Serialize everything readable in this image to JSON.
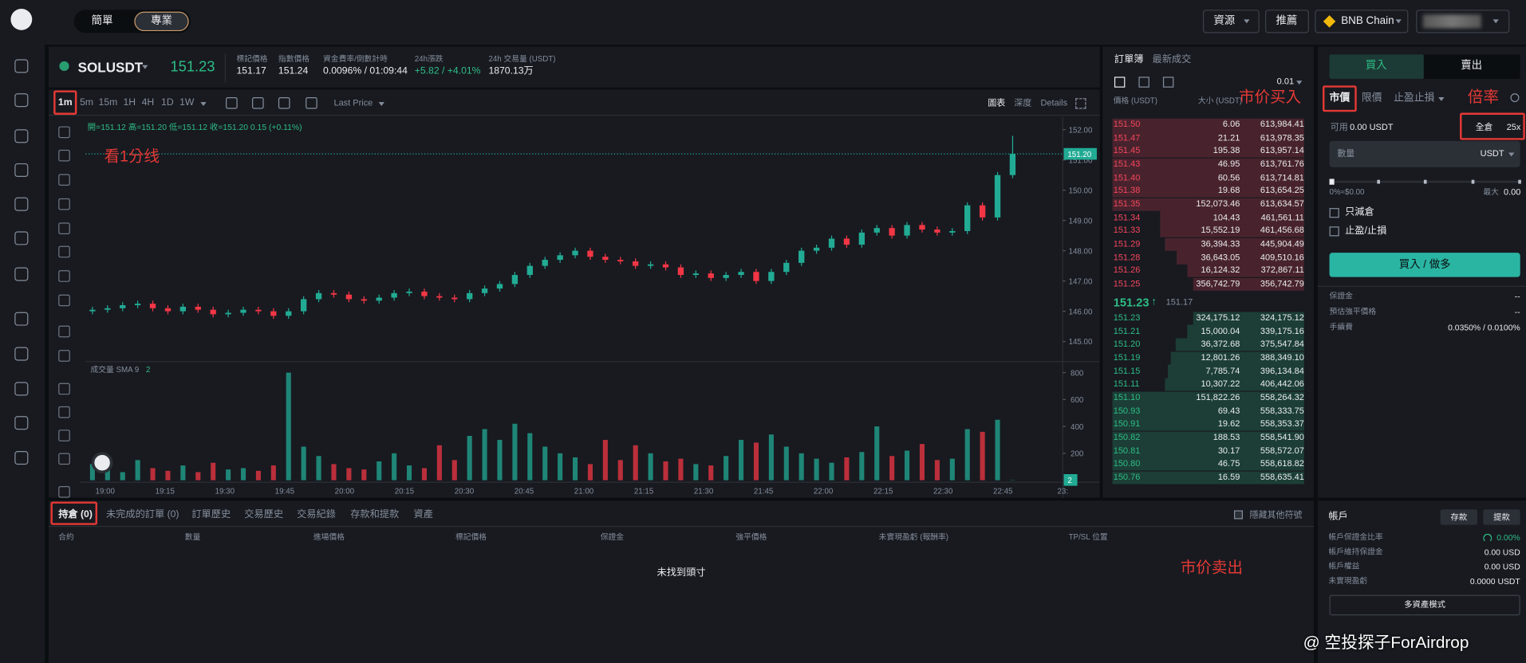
{
  "nav": {
    "simple": "簡單",
    "pro": "專業",
    "resources": "資源",
    "referral": "推薦",
    "network": "BNB Chain"
  },
  "ticker": {
    "symbol": "SOLUSDT",
    "price": "151.23",
    "stats": [
      {
        "label": "標記價格",
        "value": "151.17"
      },
      {
        "label": "指數價格",
        "value": "151.24"
      },
      {
        "label": "資金費率/倒數計時",
        "value": "0.0096% / 01:09:44"
      },
      {
        "label": "24h漲跌",
        "value": "+5.82 / +4.01%"
      },
      {
        "label": "24h 交易量 (USDT)",
        "value": "1870.13万"
      }
    ]
  },
  "toolbar": {
    "intervals": [
      "1m",
      "5m",
      "15m",
      "1H",
      "4H",
      "1D",
      "1W"
    ],
    "price_source": "Last Price",
    "views": [
      "圖表",
      "深度",
      "Details"
    ]
  },
  "chart_data": {
    "type": "candlestick",
    "ohlc_label": "開=151.12 高=151.20 低=151.12 收=151.20 0.15 (+0.11%)",
    "open": [
      146.0,
      146.05,
      146.1,
      146.2,
      146.25,
      146.1,
      146.0,
      146.15,
      146.05,
      145.9,
      145.95,
      146.05,
      146.0,
      145.85,
      146.0,
      146.4,
      146.6,
      146.55,
      146.4,
      146.35,
      146.45,
      146.6,
      146.65,
      146.5,
      146.45,
      146.4,
      146.6,
      146.75,
      146.9,
      147.2,
      147.5,
      147.7,
      147.85,
      148.0,
      147.8,
      147.7,
      147.65,
      147.5,
      147.55,
      147.45,
      147.2,
      147.25,
      147.1,
      147.2,
      147.3,
      147.0,
      147.3,
      147.6,
      148.0,
      148.1,
      148.4,
      148.2,
      148.6,
      148.75,
      148.5,
      148.85,
      148.7,
      148.6,
      148.65,
      149.5,
      149.1,
      150.5
    ],
    "high": [
      146.15,
      146.2,
      146.3,
      146.35,
      146.35,
      146.2,
      146.25,
      146.25,
      146.15,
      146.05,
      146.15,
      146.15,
      146.1,
      146.1,
      146.5,
      146.7,
      146.7,
      146.65,
      146.5,
      146.55,
      146.7,
      146.75,
      146.75,
      146.6,
      146.55,
      146.7,
      146.85,
      147.0,
      147.3,
      147.6,
      147.8,
      147.95,
      148.1,
      148.1,
      147.9,
      147.8,
      147.75,
      147.65,
      147.65,
      147.55,
      147.35,
      147.35,
      147.3,
      147.4,
      147.4,
      147.4,
      147.7,
      148.1,
      148.2,
      148.5,
      148.5,
      148.7,
      148.85,
      148.85,
      148.95,
      148.95,
      148.8,
      148.75,
      149.6,
      149.6,
      150.6,
      151.8
    ],
    "low": [
      145.9,
      145.95,
      146.0,
      146.1,
      146.0,
      145.9,
      145.9,
      145.95,
      145.8,
      145.8,
      145.85,
      145.9,
      145.75,
      145.75,
      145.9,
      146.3,
      146.45,
      146.3,
      146.25,
      146.25,
      146.35,
      146.5,
      146.4,
      146.35,
      146.3,
      146.3,
      146.5,
      146.65,
      146.8,
      147.1,
      147.4,
      147.6,
      147.75,
      147.7,
      147.6,
      147.55,
      147.4,
      147.4,
      147.35,
      147.1,
      147.1,
      147.0,
      147.0,
      147.1,
      146.9,
      146.9,
      147.2,
      147.5,
      147.9,
      148.0,
      148.1,
      148.1,
      148.5,
      148.4,
      148.4,
      148.6,
      148.5,
      148.5,
      148.55,
      149.0,
      149.0,
      150.4
    ],
    "close": [
      146.05,
      146.1,
      146.2,
      146.25,
      146.1,
      146.0,
      146.15,
      146.05,
      145.9,
      145.95,
      146.05,
      146.0,
      145.85,
      146.0,
      146.4,
      146.6,
      146.55,
      146.4,
      146.35,
      146.45,
      146.6,
      146.65,
      146.5,
      146.45,
      146.4,
      146.6,
      146.75,
      146.9,
      147.2,
      147.5,
      147.7,
      147.85,
      148.0,
      147.8,
      147.7,
      147.65,
      147.5,
      147.55,
      147.45,
      147.2,
      147.25,
      147.1,
      147.2,
      147.3,
      147.0,
      147.3,
      147.6,
      148.0,
      148.1,
      148.4,
      148.2,
      148.6,
      148.75,
      148.5,
      148.85,
      148.7,
      148.6,
      148.65,
      149.5,
      149.1,
      150.5,
      151.2
    ],
    "up_color": "#22ab94",
    "down_color": "#f23645",
    "ylim": [
      144.4,
      152.43
    ],
    "yticks": [
      {
        "value": 152,
        "label": "152.00"
      },
      {
        "value": 151,
        "label": "151.00"
      },
      {
        "value": 150,
        "label": "150.00"
      },
      {
        "value": 149,
        "label": "149.00"
      },
      {
        "value": 148,
        "label": "148.00"
      },
      {
        "value": 147,
        "label": "147.00"
      },
      {
        "value": 146,
        "label": "146.00"
      },
      {
        "value": 145,
        "label": "145.00"
      }
    ],
    "last_price": {
      "value": 151.2,
      "label": "151.20"
    },
    "time_labels": [
      "19:00",
      "19:15",
      "19:30",
      "19:45",
      "20:00",
      "20:15",
      "20:30",
      "20:45",
      "21:00",
      "21:15",
      "21:30",
      "21:45",
      "22:00",
      "22:15",
      "22:30",
      "22:45",
      "23:"
    ],
    "volume": {
      "title": "成交量 SMA 9",
      "sma": 2,
      "values": [
        120,
        80,
        60,
        150,
        90,
        70,
        110,
        60,
        130,
        80,
        90,
        70,
        110,
        800,
        250,
        180,
        120,
        90,
        80,
        140,
        200,
        110,
        90,
        260,
        150,
        330,
        380,
        300,
        420,
        350,
        250,
        200,
        170,
        120,
        300,
        150,
        260,
        200,
        140,
        160,
        120,
        110,
        180,
        300,
        280,
        340,
        250,
        200,
        160,
        130,
        170,
        210,
        400,
        180,
        220,
        270,
        150,
        160,
        380,
        360,
        450,
        2
      ],
      "ylim": [
        0,
        860
      ],
      "yticks": [
        200,
        400,
        600,
        800
      ]
    }
  },
  "annotations": {
    "interval": "看1分线",
    "market_buy": "市价买入",
    "leverage": "倍率",
    "market_sell": "市价卖出"
  },
  "positions": {
    "tabs": [
      "持倉 (0)",
      "未完成的訂單 (0)",
      "訂單歷史",
      "交易歷史",
      "交易紀錄",
      "存款和提款",
      "資產"
    ],
    "hide_other": "隱藏其他符號",
    "columns": [
      "合約",
      "數量",
      "進場價格",
      "標記價格",
      "保證金",
      "強平價格",
      "未實現盈虧 (報酬率)",
      "TP/SL 位置"
    ],
    "empty": "未找到頭寸"
  },
  "order_book": {
    "tabs": [
      "訂單簿",
      "最新成交"
    ],
    "tick": "0.01",
    "columns": [
      "價格 (USDT)",
      "大小 (USDT)"
    ],
    "asks": [
      [
        "151.50",
        "6.06",
        "613,984.41"
      ],
      [
        "151.47",
        "21.21",
        "613,978.35"
      ],
      [
        "151.45",
        "195.38",
        "613,957.14"
      ],
      [
        "151.43",
        "46.95",
        "613,761.76"
      ],
      [
        "151.40",
        "60.56",
        "613,714.81"
      ],
      [
        "151.38",
        "19.68",
        "613,654.25"
      ],
      [
        "151.35",
        "152,073.46",
        "613,634.57"
      ],
      [
        "151.34",
        "104.43",
        "461,561.11"
      ],
      [
        "151.33",
        "15,552.19",
        "461,456.68"
      ],
      [
        "151.29",
        "36,394.33",
        "445,904.49"
      ],
      [
        "151.28",
        "36,643.05",
        "409,510.16"
      ],
      [
        "151.26",
        "16,124.32",
        "372,867.11"
      ],
      [
        "151.25",
        "356,742.79",
        "356,742.79"
      ]
    ],
    "mid": {
      "price": "151.23",
      "arrow": "↑",
      "mark": "151.17"
    },
    "bids": [
      [
        "151.23",
        "324,175.12",
        "324,175.12"
      ],
      [
        "151.21",
        "15,000.04",
        "339,175.16"
      ],
      [
        "151.20",
        "36,372.68",
        "375,547.84"
      ],
      [
        "151.19",
        "12,801.26",
        "388,349.10"
      ],
      [
        "151.15",
        "7,785.74",
        "396,134.84"
      ],
      [
        "151.11",
        "10,307.22",
        "406,442.06"
      ],
      [
        "151.10",
        "151,822.26",
        "558,264.32"
      ],
      [
        "150.93",
        "69.43",
        "558,333.75"
      ],
      [
        "150.91",
        "19.62",
        "558,353.37"
      ],
      [
        "150.82",
        "188.53",
        "558,541.90"
      ],
      [
        "150.81",
        "30.17",
        "558,572.07"
      ],
      [
        "150.80",
        "46.75",
        "558,618.82"
      ],
      [
        "150.76",
        "16.59",
        "558,635.41"
      ]
    ]
  },
  "order_form": {
    "sides": [
      "買入",
      "賣出"
    ],
    "types": [
      "市價",
      "限價",
      "止盈止損"
    ],
    "margin_mode": "全倉",
    "leverage": "25x",
    "available_label": "可用",
    "available": "0.00 USDT",
    "qty_placeholder": "數量",
    "qty_unit": "USDT",
    "slider_min": "0%≈$0.00",
    "max_label": "最大",
    "max": "0.00",
    "options": [
      "只減倉",
      "止盈/止損"
    ],
    "submit": "買入 / 做多",
    "info": [
      {
        "label": "保證金",
        "value": "--"
      },
      {
        "label": "預估強平價格",
        "value": "--"
      },
      {
        "label": "手續費",
        "value": "0.0350% / 0.0100%"
      }
    ]
  },
  "account": {
    "title": "帳戶",
    "buttons": [
      "存款",
      "提款"
    ],
    "rows": [
      {
        "label": "帳戶保證金比率",
        "value": "0.00%"
      },
      {
        "label": "帳戶維持保證金",
        "value": "0.00 USD"
      },
      {
        "label": "帳戶權益",
        "value": "0.00 USD"
      },
      {
        "label": "未實現盈虧",
        "value": "0.0000 USDT"
      }
    ],
    "mode": "多資產模式"
  },
  "watermark": "@ 空投探子ForAirdrop"
}
